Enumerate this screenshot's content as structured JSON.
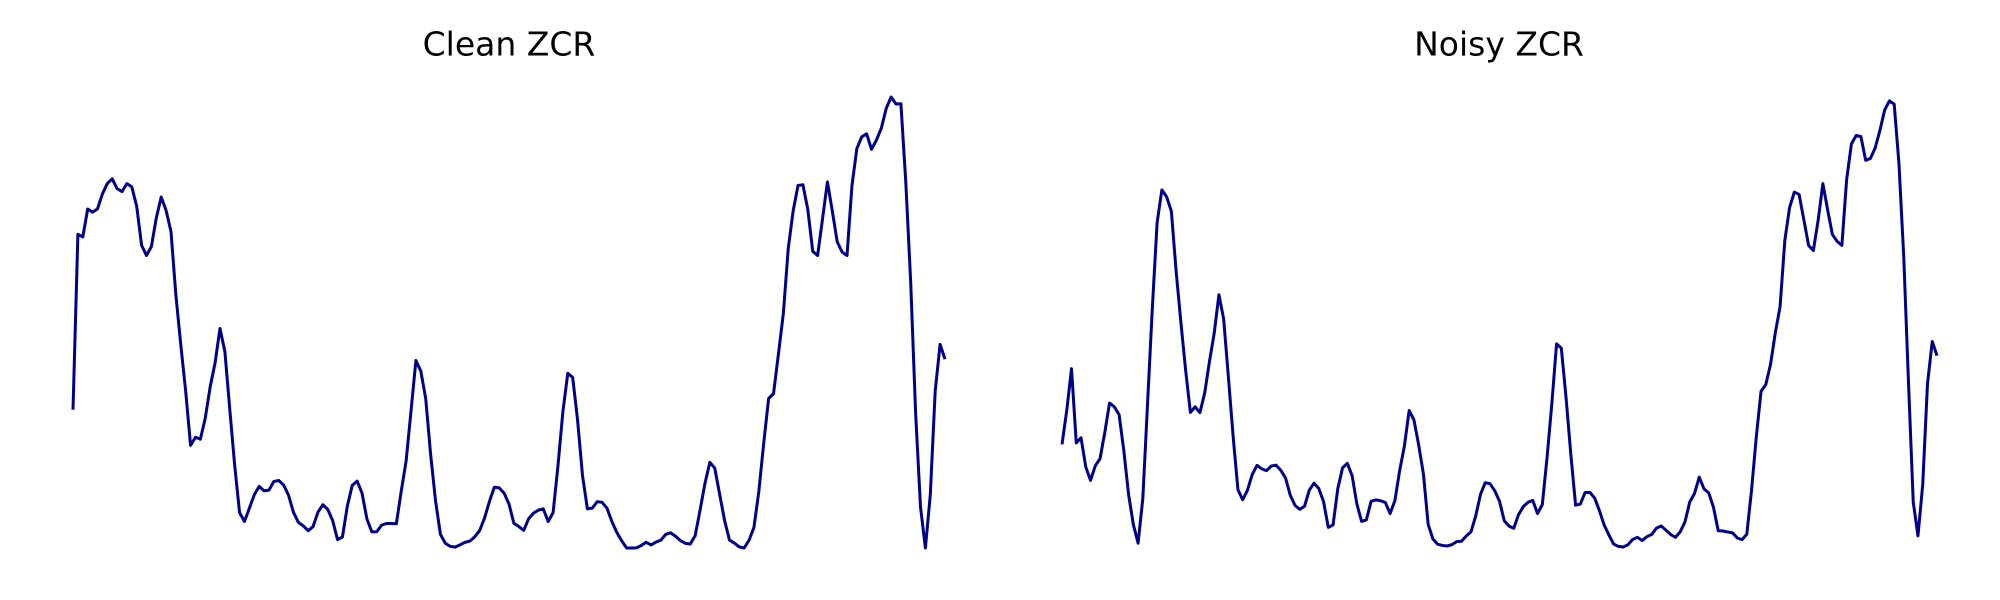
{
  "line_color": "#00008b",
  "chart_data": [
    {
      "type": "line",
      "title": "Clean ZCR",
      "xlabel": "",
      "ylabel": "",
      "ylim": [
        0,
        1
      ],
      "grid": false,
      "axes_visible": false,
      "series": [
        {
          "values": [
            0.3067,
            0.6956,
            0.6897,
            0.7516,
            0.7447,
            0.7519,
            0.785,
            0.8081,
            0.8186,
            0.7968,
            0.7903,
            0.8079,
            0.8008,
            0.7578,
            0.6712,
            0.6485,
            0.6682,
            0.7316,
            0.7781,
            0.7487,
            0.7017,
            0.5607,
            0.4507,
            0.3478,
            0.2276,
            0.2455,
            0.2413,
            0.2881,
            0.3572,
            0.4102,
            0.4867,
            0.4359,
            0.3078,
            0.1838,
            0.0787,
            0.0588,
            0.0883,
            0.1179,
            0.1367,
            0.1266,
            0.1283,
            0.1476,
            0.1496,
            0.1397,
            0.117,
            0.0793,
            0.057,
            0.0491,
            0.0383,
            0.0475,
            0.0794,
            0.0959,
            0.0857,
            0.0609,
            0.0187,
            0.0244,
            0.0928,
            0.1389,
            0.1483,
            0.1215,
            0.0643,
            0.0357,
            0.0361,
            0.0507,
            0.0544,
            0.0542,
            0.0537,
            0.1257,
            0.1928,
            0.3037,
            0.4158,
            0.3922,
            0.3313,
            0.2077,
            0.105,
            0.0304,
            0.0106,
            0.0037,
            0.0019,
            0.007,
            0.0125,
            0.0153,
            0.0247,
            0.0386,
            0.0661,
            0.103,
            0.1347,
            0.1334,
            0.1216,
            0.0975,
            0.0546,
            0.0476,
            0.0391,
            0.0648,
            0.0773,
            0.084,
            0.0868,
            0.0585,
            0.0785,
            0.1828,
            0.3024,
            0.3875,
            0.3781,
            0.2835,
            0.1609,
            0.087,
            0.0884,
            0.1027,
            0.1013,
            0.0883,
            0.0588,
            0.0346,
            0.0161,
            0.0001,
            0.0,
            0.0002,
            0.0057,
            0.0127,
            0.0067,
            0.0131,
            0.0175,
            0.0303,
            0.0336,
            0.026,
            0.0163,
            0.0103,
            0.0088,
            0.0273,
            0.084,
            0.1433,
            0.19,
            0.1772,
            0.1191,
            0.0614,
            0.0176,
            0.011,
            0.0023,
            0.0,
            0.0172,
            0.0456,
            0.1257,
            0.2329,
            0.3317,
            0.3423,
            0.4304,
            0.5197,
            0.6641,
            0.7472,
            0.8038,
            0.8054,
            0.7501,
            0.6579,
            0.6487,
            0.7298,
            0.8117,
            0.7466,
            0.6791,
            0.6561,
            0.6486,
            0.8027,
            0.8854,
            0.9116,
            0.9184,
            0.884,
            0.9045,
            0.9307,
            0.9746,
            1.0,
            0.9844,
            0.9851,
            0.8104,
            0.5889,
            0.2999,
            0.0908,
            0.0,
            0.1182,
            0.3482,
            0.4516,
            0.4186
          ]
        }
      ]
    },
    {
      "type": "line",
      "title": "Noisy ZCR",
      "xlabel": "",
      "ylabel": "",
      "ylim": [
        0,
        1
      ],
      "grid": false,
      "axes_visible": false,
      "series": [
        {
          "values": [
            0.2298,
            0.3052,
            0.3976,
            0.2331,
            0.2444,
            0.1795,
            0.15,
            0.1823,
            0.198,
            0.2562,
            0.3214,
            0.313,
            0.2958,
            0.2157,
            0.1188,
            0.052,
            0.0107,
            0.1102,
            0.3221,
            0.5328,
            0.7215,
            0.794,
            0.7788,
            0.7465,
            0.6135,
            0.5002,
            0.3938,
            0.3006,
            0.313,
            0.3001,
            0.3431,
            0.4128,
            0.4758,
            0.5616,
            0.5073,
            0.3779,
            0.2456,
            0.129,
            0.107,
            0.1282,
            0.1628,
            0.1832,
            0.1755,
            0.1715,
            0.1817,
            0.1838,
            0.1723,
            0.1555,
            0.1169,
            0.0946,
            0.0857,
            0.0927,
            0.1283,
            0.1437,
            0.1319,
            0.1029,
            0.0457,
            0.0512,
            0.1319,
            0.1779,
            0.1876,
            0.1607,
            0.0978,
            0.059,
            0.0624,
            0.1036,
            0.1067,
            0.1047,
            0.1007,
            0.0763,
            0.1051,
            0.1714,
            0.2261,
            0.3048,
            0.2843,
            0.2285,
            0.1644,
            0.0522,
            0.02,
            0.0084,
            0.0057,
            0.0045,
            0.0075,
            0.0142,
            0.015,
            0.0266,
            0.0357,
            0.071,
            0.1188,
            0.1447,
            0.1426,
            0.1268,
            0.1038,
            0.0603,
            0.0484,
            0.0437,
            0.0739,
            0.0916,
            0.1014,
            0.1054,
            0.0763,
            0.0962,
            0.2005,
            0.3192,
            0.4527,
            0.4433,
            0.3326,
            0.2076,
            0.0949,
            0.0974,
            0.1231,
            0.1234,
            0.111,
            0.0833,
            0.0512,
            0.0289,
            0.0088,
            0.0035,
            0.0022,
            0.0071,
            0.0188,
            0.0237,
            0.0165,
            0.0251,
            0.0301,
            0.0441,
            0.0489,
            0.0395,
            0.0299,
            0.0235,
            0.0359,
            0.0578,
            0.1017,
            0.1208,
            0.1571,
            0.1311,
            0.1221,
            0.0902,
            0.0382,
            0.0377,
            0.0354,
            0.0337,
            0.0222,
            0.0186,
            0.0306,
            0.1282,
            0.246,
            0.3476,
            0.3624,
            0.4074,
            0.4772,
            0.535,
            0.6821,
            0.7548,
            0.7893,
            0.7839,
            0.7279,
            0.6709,
            0.6596,
            0.7261,
            0.808,
            0.7499,
            0.6953,
            0.6799,
            0.6709,
            0.8173,
            0.8957,
            0.9146,
            0.9122,
            0.8596,
            0.8638,
            0.8872,
            0.9261,
            0.9714,
            0.9916,
            0.984,
            0.852,
            0.6476,
            0.3686,
            0.1022,
            0.0269,
            0.1408,
            0.3639,
            0.4578,
            0.4265
          ]
        }
      ]
    }
  ]
}
